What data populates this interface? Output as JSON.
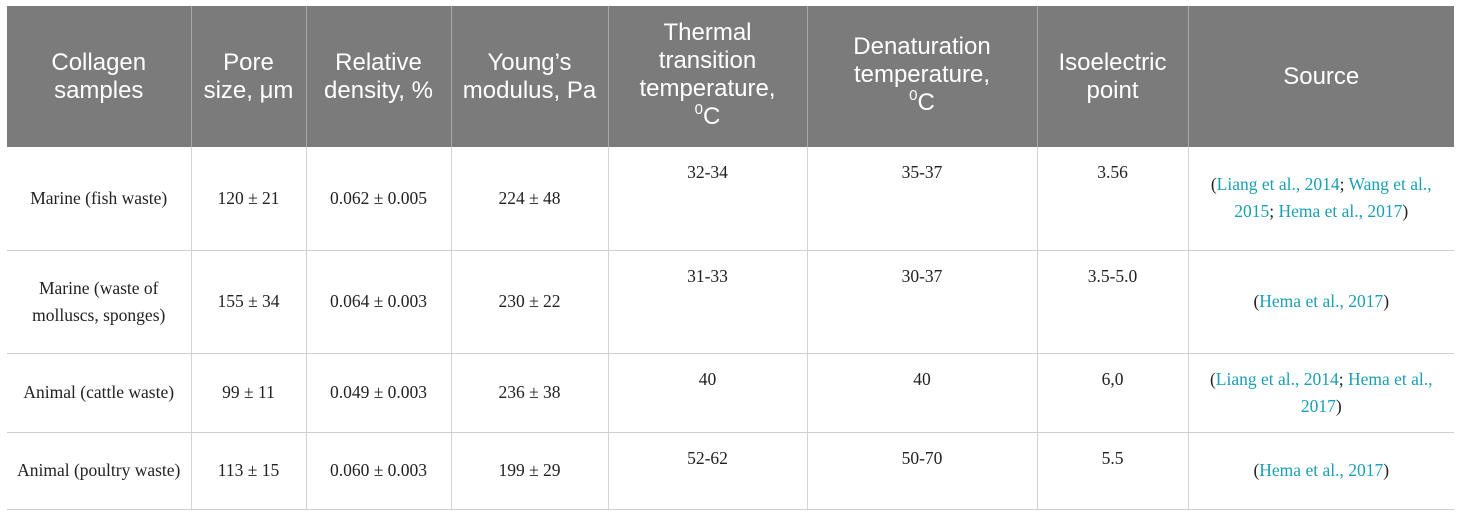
{
  "headers": [
    "Collagen samples",
    "Pore size, μm",
    "Relative density, %",
    "Young’s modulus, Pa",
    "Thermal transition temperature,",
    "Denaturation temperature,",
    "Isoelectric point",
    "Source"
  ],
  "degree_sup": "0",
  "degree_unit": "C",
  "rows": [
    {
      "sample": "Marine (fish waste)",
      "pore": "120 ± 21",
      "density": "0.062 ± 0.005",
      "youngs": "224 ± 48",
      "thermal": "32-34",
      "denat": "35-37",
      "iso": "3.56",
      "source": {
        "open": "(",
        "refs": [
          "Liang et al., 2014",
          "Wang et al., 2015",
          "Hema et al., 2017"
        ],
        "sep": "; ",
        "close": ")"
      }
    },
    {
      "sample": "Marine (waste of molluscs, sponges)",
      "pore": "155 ± 34",
      "density": "0.064 ± 0.003",
      "youngs": "230 ± 22",
      "thermal": "31-33",
      "denat": "30-37",
      "iso": "3.5-5.0",
      "source": {
        "open": "(",
        "refs": [
          "Hema et al., 2017"
        ],
        "sep": "; ",
        "close": ")"
      }
    },
    {
      "sample": "Animal (cattle waste)",
      "pore": "99 ± 11",
      "density": "0.049 ± 0.003",
      "youngs": "236 ± 38",
      "thermal": "40",
      "denat": "40",
      "iso": "6,0",
      "source": {
        "open": "(",
        "refs": [
          "Liang et al., 2014",
          "Hema et al., 2017"
        ],
        "sep": "; ",
        "close": ")"
      }
    },
    {
      "sample": "Animal (poultry waste)",
      "pore": "113 ± 15",
      "density": "0.060 ± 0.003",
      "youngs": "199 ± 29",
      "thermal": "52-62",
      "denat": "50-70",
      "iso": "5.5",
      "source": {
        "open": "(",
        "refs": [
          "Hema et al., 2017"
        ],
        "sep": "; ",
        "close": ")"
      }
    }
  ],
  "colors": {
    "header_bg": "#7b7b7b",
    "header_text": "#ffffff",
    "citation": "#1a9fb3",
    "body_text": "#222222"
  }
}
